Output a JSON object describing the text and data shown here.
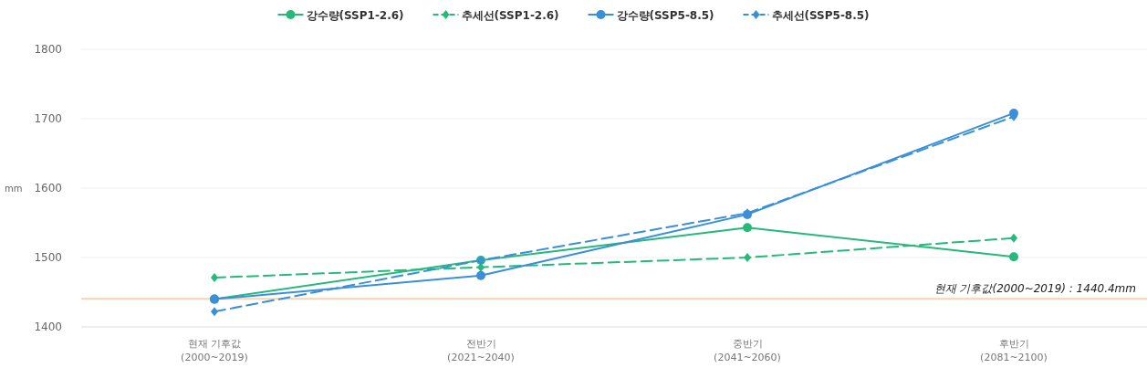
{
  "chart_data": {
    "type": "line",
    "categories": [
      "현재 기후값\n(2000~2019)",
      "전반기\n(2021~2040)",
      "중반기\n(2041~2060)",
      "후반기\n(2081~2100)"
    ],
    "ylabel": "mm",
    "ylim": [
      1400,
      1800
    ],
    "yticks": [
      1400,
      1500,
      1600,
      1700,
      1800
    ],
    "grid": "y",
    "legend": "top",
    "series": [
      {
        "name": "강수량(SSP1-2.6)",
        "color": "#25b97a",
        "values": [
          1440,
          1496,
          1543,
          1501
        ],
        "marker": "circle",
        "line_style": "solid"
      },
      {
        "name": "추세선(SSP1-2.6)",
        "color": "#25b97a",
        "values": [
          1471,
          1486,
          1500,
          1528
        ],
        "marker": "diamond",
        "line_style": "dashed"
      },
      {
        "name": "강수량(SSP5-8.5)",
        "color": "#3a8fd9",
        "values": [
          1440,
          1474,
          1562,
          1708
        ],
        "marker": "circle",
        "line_style": "solid"
      },
      {
        "name": "추세선(SSP5-8.5)",
        "color": "#3a8fd9",
        "values": [
          1422,
          1496,
          1564,
          1703
        ],
        "marker": "diamond",
        "line_style": "dashed"
      }
    ],
    "ref_lines": [
      {
        "axis": "y",
        "value": 1440.4,
        "label": "현재 기후값(2000~2019) : 1440.4mm",
        "color": "#f8d3b0"
      }
    ]
  }
}
